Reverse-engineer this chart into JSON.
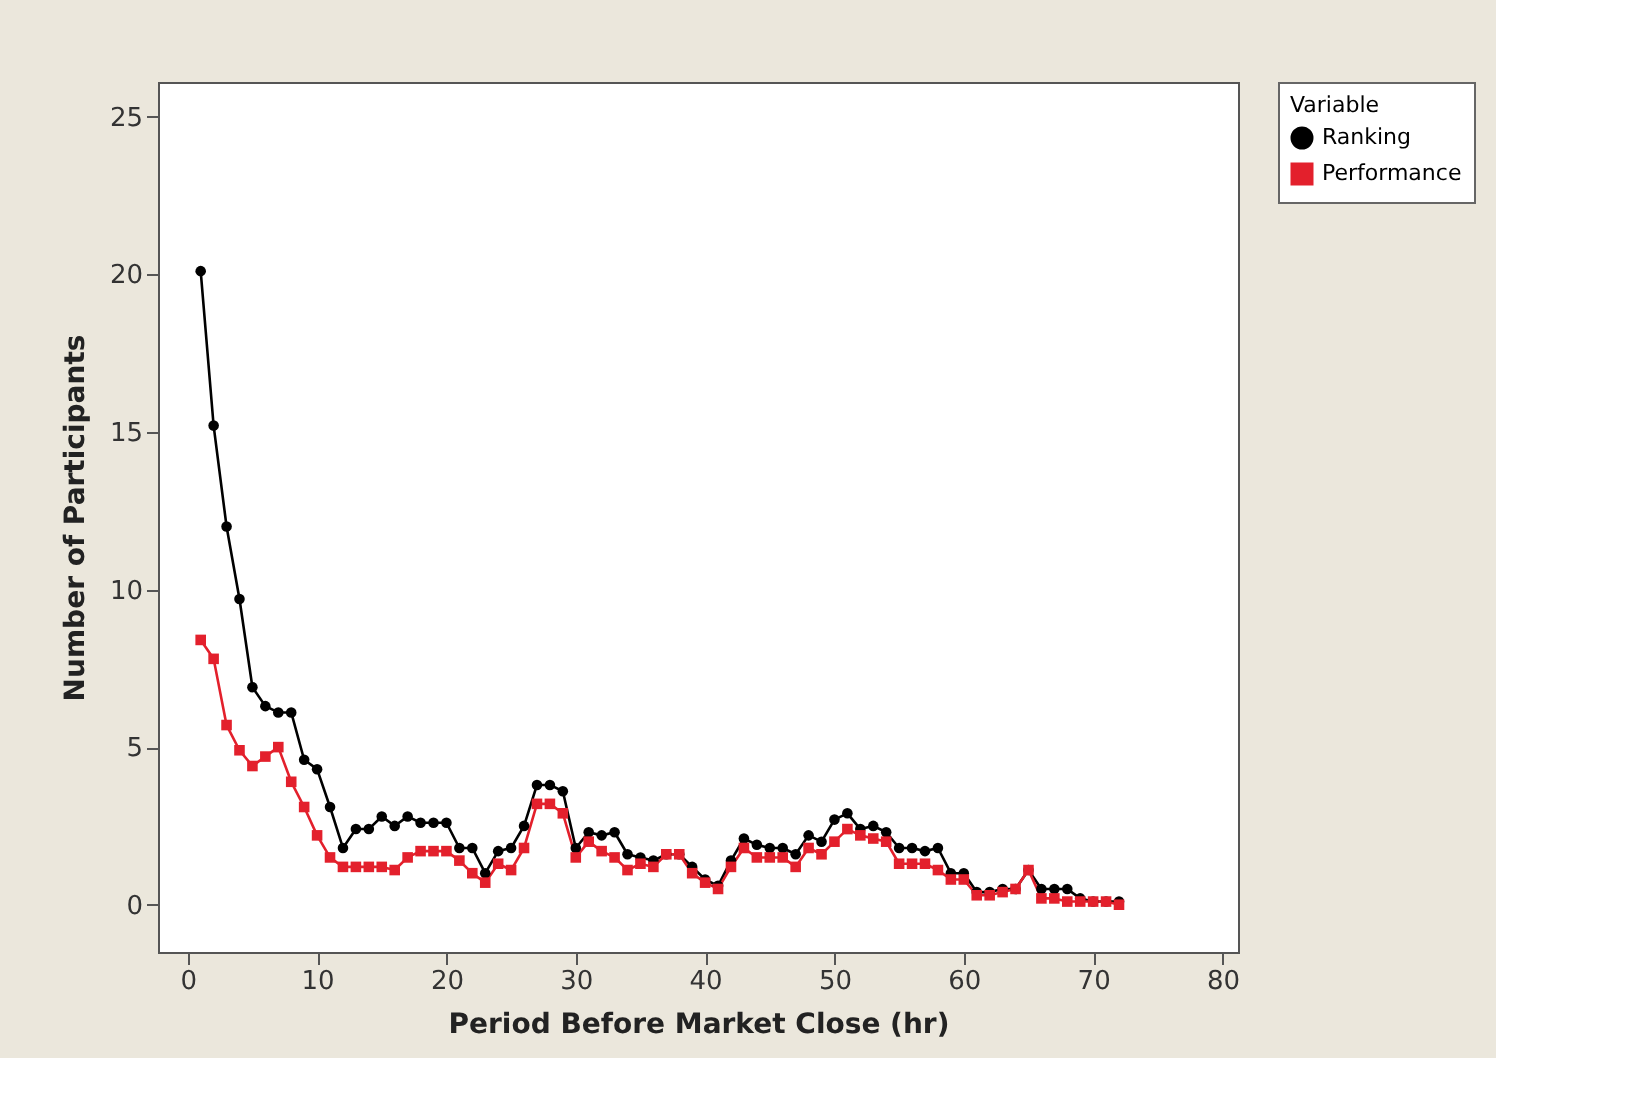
{
  "chart_data": {
    "type": "line",
    "xlabel": "Period Before Market Close (hr)",
    "ylabel": "Number of Participants",
    "legend_title": "Variable",
    "legend": "right",
    "grid": false,
    "line_style": "solid",
    "x": [
      1,
      2,
      3,
      4,
      5,
      6,
      7,
      8,
      9,
      10,
      11,
      12,
      13,
      14,
      15,
      16,
      17,
      18,
      19,
      20,
      21,
      22,
      23,
      24,
      25,
      26,
      27,
      28,
      29,
      30,
      31,
      32,
      33,
      34,
      35,
      36,
      37,
      38,
      39,
      40,
      41,
      42,
      43,
      44,
      45,
      46,
      47,
      48,
      49,
      50,
      51,
      52,
      53,
      54,
      55,
      56,
      57,
      58,
      59,
      60,
      61,
      62,
      63,
      64,
      65,
      66,
      67,
      68,
      69,
      70,
      71,
      72
    ],
    "xlim": [
      -2.3,
      81.2
    ],
    "xticks": [
      0,
      10,
      20,
      30,
      40,
      50,
      60,
      70,
      80
    ],
    "ylim": [
      -1.5,
      26.1
    ],
    "yticks": [
      0,
      5,
      10,
      15,
      20,
      25
    ],
    "series": [
      {
        "name": "Ranking",
        "color": "#000000",
        "marker": "circle",
        "values": [
          20.1,
          15.2,
          12.0,
          9.7,
          6.9,
          6.3,
          6.1,
          6.1,
          4.6,
          4.3,
          3.1,
          1.8,
          2.4,
          2.4,
          2.8,
          2.5,
          2.8,
          2.6,
          2.6,
          2.6,
          1.8,
          1.8,
          1.0,
          1.7,
          1.8,
          2.5,
          3.8,
          3.8,
          3.6,
          1.8,
          2.3,
          2.2,
          2.3,
          1.6,
          1.5,
          1.4,
          1.6,
          1.6,
          1.2,
          0.8,
          0.6,
          1.4,
          2.1,
          1.9,
          1.8,
          1.8,
          1.6,
          2.2,
          2.0,
          2.7,
          2.9,
          2.4,
          2.5,
          2.3,
          1.8,
          1.8,
          1.7,
          1.8,
          1.0,
          1.0,
          0.4,
          0.4,
          0.5,
          0.5,
          1.1,
          0.5,
          0.5,
          0.5,
          0.2,
          0.1,
          0.1,
          0.1
        ]
      },
      {
        "name": "Performance",
        "color": "#e3202c",
        "marker": "square",
        "values": [
          8.4,
          7.8,
          5.7,
          4.9,
          4.4,
          4.7,
          5.0,
          3.9,
          3.1,
          2.2,
          1.5,
          1.2,
          1.2,
          1.2,
          1.2,
          1.1,
          1.5,
          1.7,
          1.7,
          1.7,
          1.4,
          1.0,
          0.7,
          1.3,
          1.1,
          1.8,
          3.2,
          3.2,
          2.9,
          1.5,
          2.0,
          1.7,
          1.5,
          1.1,
          1.3,
          1.2,
          1.6,
          1.6,
          1.0,
          0.7,
          0.5,
          1.2,
          1.8,
          1.5,
          1.5,
          1.5,
          1.2,
          1.8,
          1.6,
          2.0,
          2.4,
          2.2,
          2.1,
          2.0,
          1.3,
          1.3,
          1.3,
          1.1,
          0.8,
          0.8,
          0.3,
          0.3,
          0.4,
          0.5,
          1.1,
          0.2,
          0.2,
          0.1,
          0.1,
          0.1,
          0.1,
          0.0
        ]
      }
    ]
  }
}
